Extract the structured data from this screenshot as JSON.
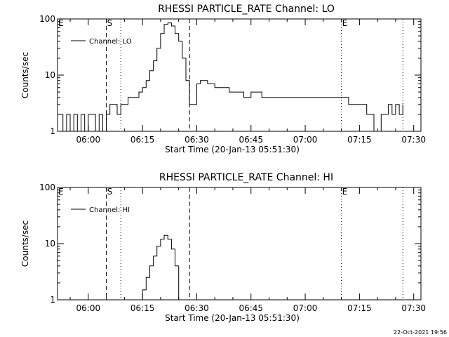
{
  "footer_timestamp": "22-Oct-2021 19:56",
  "chart_data": [
    {
      "type": "line",
      "title": "RHESSI PARTICLE_RATE Channel: LO",
      "xlabel": "Start Time (20-Jan-13 05:51:30)",
      "ylabel": "Counts/sec",
      "yscale": "log",
      "ylim": [
        1,
        100
      ],
      "y_ticks": [
        1,
        10,
        100
      ],
      "y_tick_labels": [
        "1",
        "10",
        "100"
      ],
      "xlim": [
        "05:51:30",
        "07:32:00"
      ],
      "x_ticks": [
        "06:00",
        "06:15",
        "06:30",
        "06:45",
        "07:00",
        "07:15",
        "07:30"
      ],
      "legend": {
        "label": "Channel: LO",
        "position": "top-left"
      },
      "markers": [
        {
          "label": "E",
          "time": "05:51:30",
          "style": "none"
        },
        {
          "label": "S",
          "time": "06:05:00",
          "style": "dashed"
        },
        {
          "label": "",
          "time": "06:09:00",
          "style": "dotted"
        },
        {
          "label": "",
          "time": "06:28:00",
          "style": "dashed"
        },
        {
          "label": "E",
          "time": "07:10:00",
          "style": "dotted"
        },
        {
          "label": "",
          "time": "07:27:00",
          "style": "dotted"
        }
      ],
      "series": [
        {
          "name": "Channel: LO",
          "x": [
            "05:52:00",
            "05:53:00",
            "05:54:00",
            "05:55:00",
            "05:56:00",
            "05:57:00",
            "05:58:00",
            "05:59:00",
            "06:00:00",
            "06:01:00",
            "06:02:00",
            "06:03:00",
            "06:04:00",
            "06:05:00",
            "06:06:00",
            "06:07:00",
            "06:08:00",
            "06:09:00",
            "06:10:00",
            "06:11:00",
            "06:12:00",
            "06:13:00",
            "06:14:00",
            "06:15:00",
            "06:16:00",
            "06:17:00",
            "06:18:00",
            "06:19:00",
            "06:20:00",
            "06:21:00",
            "06:22:00",
            "06:23:00",
            "06:24:00",
            "06:25:00",
            "06:26:00",
            "06:27:00",
            "06:28:00",
            "06:29:00",
            "06:30:00",
            "06:31:00",
            "06:33:00",
            "06:35:00",
            "06:37:00",
            "06:39:00",
            "06:41:00",
            "06:43:00",
            "06:45:00",
            "06:48:00",
            "06:51:00",
            "06:54:00",
            "06:57:00",
            "07:00:00",
            "07:03:00",
            "07:06:00",
            "07:09:00",
            "07:12:00",
            "07:15:00",
            "07:17:00",
            "07:18:00",
            "07:19:00",
            "07:20:00",
            "07:21:00",
            "07:22:00",
            "07:23:00",
            "07:24:00",
            "07:25:00",
            "07:26:00",
            "07:27:00"
          ],
          "y": [
            2,
            1,
            2,
            1,
            2,
            1,
            2,
            1,
            2,
            2,
            1,
            2,
            1,
            2,
            3,
            3,
            2,
            3,
            3,
            4,
            4,
            4,
            5,
            6,
            8,
            12,
            18,
            30,
            55,
            80,
            85,
            75,
            55,
            40,
            20,
            8,
            3,
            3,
            7,
            8,
            7,
            6,
            6,
            5,
            5,
            4,
            5,
            4,
            4,
            4,
            4,
            4,
            4,
            4,
            4,
            3,
            3,
            2,
            2,
            1,
            1,
            2,
            2,
            3,
            2,
            3,
            2,
            3
          ]
        }
      ]
    },
    {
      "type": "line",
      "title": "RHESSI PARTICLE_RATE Channel: HI",
      "xlabel": "Start Time (20-Jan-13 05:51:30)",
      "ylabel": "Counts/sec",
      "yscale": "log",
      "ylim": [
        1,
        100
      ],
      "y_ticks": [
        1,
        10,
        100
      ],
      "y_tick_labels": [
        "1",
        "10",
        "100"
      ],
      "xlim": [
        "05:51:30",
        "07:32:00"
      ],
      "x_ticks": [
        "06:00",
        "06:15",
        "06:30",
        "06:45",
        "07:00",
        "07:15",
        "07:30"
      ],
      "legend": {
        "label": "Channel: HI",
        "position": "top-left"
      },
      "markers": [
        {
          "label": "E",
          "time": "05:51:30",
          "style": "none"
        },
        {
          "label": "S",
          "time": "06:05:00",
          "style": "dashed"
        },
        {
          "label": "",
          "time": "06:09:00",
          "style": "dotted"
        },
        {
          "label": "",
          "time": "06:28:00",
          "style": "dashed"
        },
        {
          "label": "E",
          "time": "07:10:00",
          "style": "dotted"
        },
        {
          "label": "",
          "time": "07:27:00",
          "style": "dotted"
        }
      ],
      "series": [
        {
          "name": "Channel: HI",
          "x": [
            "06:14:00",
            "06:15:00",
            "06:16:00",
            "06:17:00",
            "06:18:00",
            "06:19:00",
            "06:20:00",
            "06:21:00",
            "06:22:00",
            "06:23:00",
            "06:24:00",
            "06:25:00"
          ],
          "y": [
            1,
            1.5,
            2.5,
            4,
            6,
            9,
            12,
            14,
            12,
            8,
            4,
            1
          ]
        }
      ]
    }
  ]
}
